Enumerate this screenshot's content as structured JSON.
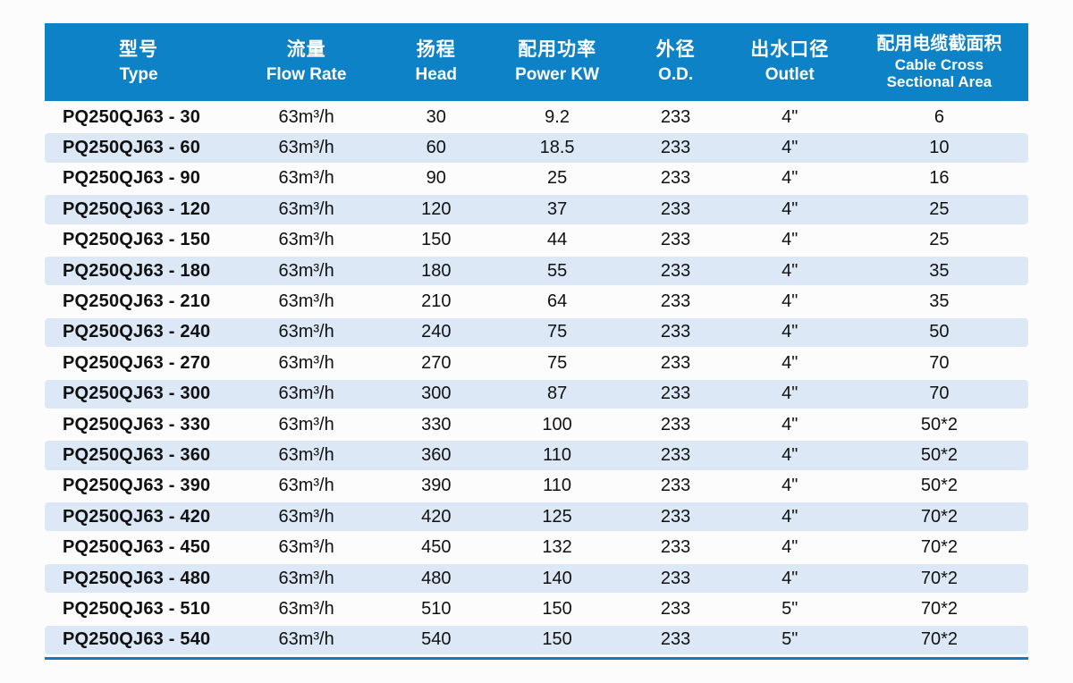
{
  "page": {
    "background": "#fcfcfc"
  },
  "table": {
    "header_bg": "#0d82c6",
    "stripe_color": "#dce8f6",
    "bottom_border_color": "#1478be",
    "header_text_color": "#ffffff",
    "body_text_color": "#111111",
    "columns": [
      {
        "zh": "型号",
        "en": "Type"
      },
      {
        "zh": "流量",
        "en": "Flow Rate"
      },
      {
        "zh": "扬程",
        "en": "Head"
      },
      {
        "zh": "配用功率",
        "en": "Power KW"
      },
      {
        "zh": "外径",
        "en": "O.D."
      },
      {
        "zh": "出水口径",
        "en": "Outlet"
      },
      {
        "zh": "配用电缆截面积",
        "en": "Cable Cross Sectional Area"
      }
    ],
    "rows": [
      [
        "PQ250QJ63 - 30",
        "63m³/h",
        "30",
        "9.2",
        "233",
        "4\"",
        "6"
      ],
      [
        "PQ250QJ63 - 60",
        "63m³/h",
        "60",
        "18.5",
        "233",
        "4\"",
        "10"
      ],
      [
        "PQ250QJ63 - 90",
        "63m³/h",
        "90",
        "25",
        "233",
        "4\"",
        "16"
      ],
      [
        "PQ250QJ63 - 120",
        "63m³/h",
        "120",
        "37",
        "233",
        "4\"",
        "25"
      ],
      [
        "PQ250QJ63 - 150",
        "63m³/h",
        "150",
        "44",
        "233",
        "4\"",
        "25"
      ],
      [
        "PQ250QJ63 - 180",
        "63m³/h",
        "180",
        "55",
        "233",
        "4\"",
        "35"
      ],
      [
        "PQ250QJ63 - 210",
        "63m³/h",
        "210",
        "64",
        "233",
        "4\"",
        "35"
      ],
      [
        "PQ250QJ63 - 240",
        "63m³/h",
        "240",
        "75",
        "233",
        "4\"",
        "50"
      ],
      [
        "PQ250QJ63 - 270",
        "63m³/h",
        "270",
        "75",
        "233",
        "4\"",
        "70"
      ],
      [
        "PQ250QJ63 - 300",
        "63m³/h",
        "300",
        "87",
        "233",
        "4\"",
        "70"
      ],
      [
        "PQ250QJ63 - 330",
        "63m³/h",
        "330",
        "100",
        "233",
        "4\"",
        "50*2"
      ],
      [
        "PQ250QJ63 - 360",
        "63m³/h",
        "360",
        "110",
        "233",
        "4\"",
        "50*2"
      ],
      [
        "PQ250QJ63 - 390",
        "63m³/h",
        "390",
        "110",
        "233",
        "4\"",
        "50*2"
      ],
      [
        "PQ250QJ63 - 420",
        "63m³/h",
        "420",
        "125",
        "233",
        "4\"",
        "70*2"
      ],
      [
        "PQ250QJ63 - 450",
        "63m³/h",
        "450",
        "132",
        "233",
        "4\"",
        "70*2"
      ],
      [
        "PQ250QJ63 - 480",
        "63m³/h",
        "480",
        "140",
        "233",
        "4\"",
        "70*2"
      ],
      [
        "PQ250QJ63 - 510",
        "63m³/h",
        "510",
        "150",
        "233",
        "5\"",
        "70*2"
      ],
      [
        "PQ250QJ63 - 540",
        "63m³/h",
        "540",
        "150",
        "233",
        "5\"",
        "70*2"
      ]
    ]
  }
}
